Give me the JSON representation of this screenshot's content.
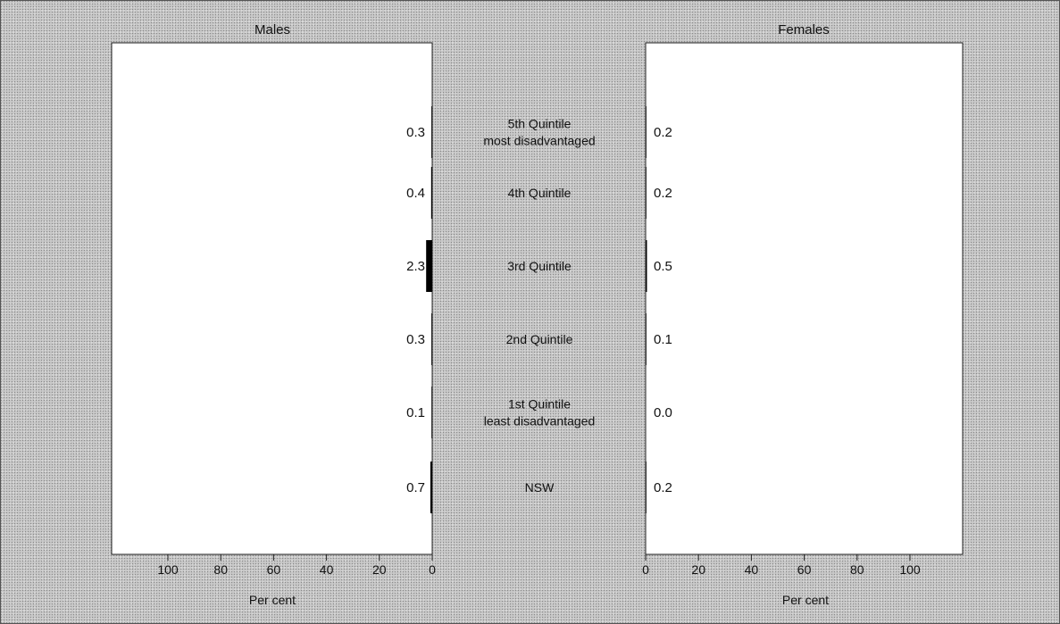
{
  "chart_data": {
    "type": "bar",
    "categories": [
      [
        "5th Quintile",
        "most disadvantaged"
      ],
      [
        "4th Quintile"
      ],
      [
        "3rd Quintile"
      ],
      [
        "2nd Quintile"
      ],
      [
        "1st Quintile",
        "least disadvantaged"
      ],
      [
        "NSW"
      ]
    ],
    "panels": [
      {
        "title": "Males",
        "direction": "left",
        "values": [
          0.3,
          0.4,
          2.3,
          0.3,
          0.1,
          0.7
        ],
        "value_labels": [
          "0.3",
          "0.4",
          "2.3",
          "0.3",
          "0.1",
          "0.7"
        ],
        "xlabel": "Per cent",
        "xlim": [
          0,
          120
        ],
        "ticks": [
          0,
          20,
          40,
          60,
          80,
          100
        ]
      },
      {
        "title": "Females",
        "direction": "right",
        "values": [
          0.2,
          0.2,
          0.5,
          0.1,
          0.0,
          0.2
        ],
        "value_labels": [
          "0.2",
          "0.2",
          "0.5",
          "0.1",
          "0.0",
          "0.2"
        ],
        "xlabel": "Per cent",
        "xlim": [
          0,
          120
        ],
        "ticks": [
          0,
          20,
          40,
          60,
          80,
          100
        ]
      }
    ],
    "bar_color": "#000000",
    "plot_background": "#ffffff",
    "grid": false,
    "legend": "none"
  }
}
